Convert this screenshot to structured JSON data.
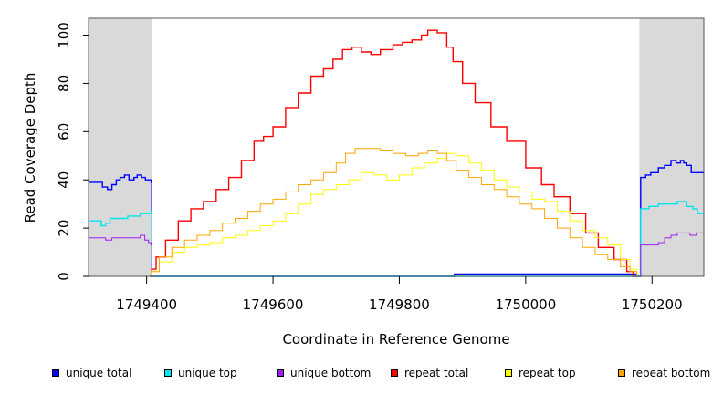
{
  "chart_data": {
    "type": "line",
    "xlabel": "Coordinate in Reference Genome",
    "ylabel": "Read Coverage Depth",
    "xlim": [
      1749308,
      1750282
    ],
    "ylim": [
      0,
      107
    ],
    "x_ticks": [
      {
        "value": 1749400,
        "label": "1749400"
      },
      {
        "value": 1749600,
        "label": "1749600"
      },
      {
        "value": 1749800,
        "label": "1749800"
      },
      {
        "value": 1750000,
        "label": "1750000"
      },
      {
        "value": 1750200,
        "label": "1750200"
      }
    ],
    "y_ticks": [
      {
        "value": 0,
        "label": "0"
      },
      {
        "value": 20,
        "label": "20"
      },
      {
        "value": 40,
        "label": "40"
      },
      {
        "value": 60,
        "label": "60"
      },
      {
        "value": 80,
        "label": "80"
      },
      {
        "value": 100,
        "label": "100"
      }
    ],
    "shaded_regions": [
      {
        "x": [
          1749308,
          1749408
        ],
        "color": "#d9d9d9"
      },
      {
        "x": [
          1750180,
          1750282
        ],
        "color": "#d9d9d9"
      }
    ],
    "legend_position": "bottom",
    "series": [
      {
        "name": "unique total",
        "color": "#0000ff",
        "x": [
          1749308,
          1749325,
          1749330,
          1749338,
          1749345,
          1749352,
          1749358,
          1749365,
          1749372,
          1749380,
          1749385,
          1749392,
          1749398,
          1749405,
          1749407,
          1749408,
          1749700,
          1749886,
          1749887,
          1750000,
          1750100,
          1750174,
          1750176,
          1750180,
          1750182,
          1750190,
          1750198,
          1750205,
          1750210,
          1750220,
          1750230,
          1750238,
          1750245,
          1750250,
          1750255,
          1750262,
          1750270,
          1750282
        ],
        "y": [
          39,
          39,
          37,
          36,
          38,
          40,
          41,
          42,
          40,
          41,
          42,
          41,
          40,
          40,
          39,
          0,
          0,
          0,
          1,
          1,
          1,
          1,
          0,
          0,
          41,
          42,
          43,
          43,
          45,
          46,
          48,
          47,
          48,
          47,
          46,
          43,
          43,
          43
        ]
      },
      {
        "name": "unique top",
        "color": "#00e5ee",
        "x": [
          1749308,
          1749320,
          1749328,
          1749335,
          1749342,
          1749350,
          1749360,
          1749370,
          1749380,
          1749390,
          1749400,
          1749407,
          1749408,
          1750176,
          1750180,
          1750182,
          1750195,
          1750210,
          1750225,
          1750240,
          1750255,
          1750265,
          1750272,
          1750282
        ],
        "y": [
          23,
          23,
          21,
          22,
          24,
          24,
          24,
          25,
          25,
          26,
          26,
          27,
          0,
          0,
          0,
          28,
          29,
          30,
          30,
          31,
          29,
          28,
          26,
          26
        ]
      },
      {
        "name": "unique bottom",
        "color": "#a020f0",
        "x": [
          1749308,
          1749325,
          1749335,
          1749345,
          1749360,
          1749370,
          1749380,
          1749390,
          1749397,
          1749403,
          1749407,
          1749408,
          1750176,
          1750180,
          1750182,
          1750200,
          1750210,
          1750220,
          1750230,
          1750240,
          1750250,
          1750260,
          1750270,
          1750282
        ],
        "y": [
          16,
          16,
          15,
          16,
          16,
          16,
          16,
          17,
          15,
          14,
          13,
          0,
          0,
          0,
          13,
          13,
          14,
          16,
          17,
          18,
          18,
          17,
          18,
          18
        ],
        "thin": true
      },
      {
        "name": "repeat total",
        "color": "#ff0000",
        "x": [
          1749405,
          1749408,
          1749415,
          1749430,
          1749450,
          1749470,
          1749490,
          1749510,
          1749530,
          1749550,
          1749570,
          1749585,
          1749600,
          1749620,
          1749640,
          1749660,
          1749680,
          1749695,
          1749710,
          1749725,
          1749740,
          1749755,
          1749770,
          1749790,
          1749805,
          1749820,
          1749835,
          1749845,
          1749860,
          1749875,
          1749885,
          1749900,
          1749920,
          1749945,
          1749970,
          1750000,
          1750025,
          1750045,
          1750070,
          1750095,
          1750115,
          1750140,
          1750160,
          1750170,
          1750174,
          1750176
        ],
        "y": [
          0,
          3,
          8,
          15,
          23,
          28,
          31,
          36,
          41,
          48,
          56,
          58,
          62,
          70,
          76,
          83,
          86,
          90,
          94,
          95,
          93,
          92,
          94,
          96,
          97,
          98,
          100,
          102,
          101,
          95,
          89,
          80,
          72,
          62,
          56,
          45,
          38,
          33,
          26,
          18,
          12,
          7,
          2,
          0,
          0,
          0
        ]
      },
      {
        "name": "repeat top",
        "color": "#ffff00",
        "x": [
          1749405,
          1749408,
          1749420,
          1749440,
          1749460,
          1749480,
          1749500,
          1749520,
          1749540,
          1749560,
          1749580,
          1749600,
          1749620,
          1749640,
          1749660,
          1749680,
          1749700,
          1749720,
          1749740,
          1749760,
          1749780,
          1749800,
          1749820,
          1749840,
          1749860,
          1749875,
          1749890,
          1749910,
          1749930,
          1749950,
          1749970,
          1749990,
          1750010,
          1750030,
          1750050,
          1750070,
          1750090,
          1750110,
          1750130,
          1750150,
          1750165,
          1750176
        ],
        "y": [
          0,
          2,
          6,
          10,
          12,
          13,
          14,
          16,
          17,
          19,
          21,
          23,
          26,
          30,
          34,
          36,
          38,
          40,
          43,
          42,
          40,
          42,
          45,
          47,
          49,
          51,
          50,
          47,
          44,
          40,
          37,
          35,
          32,
          31,
          27,
          23,
          19,
          16,
          13,
          7,
          3,
          0
        ],
        "thin": true
      },
      {
        "name": "repeat bottom",
        "color": "#ffa500",
        "x": [
          1749405,
          1749408,
          1749420,
          1749440,
          1749460,
          1749480,
          1749500,
          1749520,
          1749540,
          1749560,
          1749580,
          1749600,
          1749620,
          1749640,
          1749660,
          1749680,
          1749700,
          1749715,
          1749730,
          1749750,
          1749770,
          1749790,
          1749810,
          1749830,
          1749845,
          1749860,
          1749875,
          1749890,
          1749910,
          1749930,
          1749950,
          1749970,
          1749990,
          1750010,
          1750030,
          1750050,
          1750070,
          1750090,
          1750110,
          1750130,
          1750150,
          1750165,
          1750176,
          1750282
        ],
        "y": [
          0,
          2,
          8,
          12,
          15,
          17,
          19,
          22,
          24,
          27,
          30,
          32,
          35,
          38,
          40,
          43,
          47,
          51,
          53,
          53,
          52,
          51,
          50,
          51,
          52,
          51,
          48,
          44,
          41,
          38,
          36,
          33,
          30,
          28,
          24,
          20,
          16,
          12,
          9,
          7,
          4,
          2,
          0,
          0
        ],
        "thin": true
      }
    ]
  }
}
